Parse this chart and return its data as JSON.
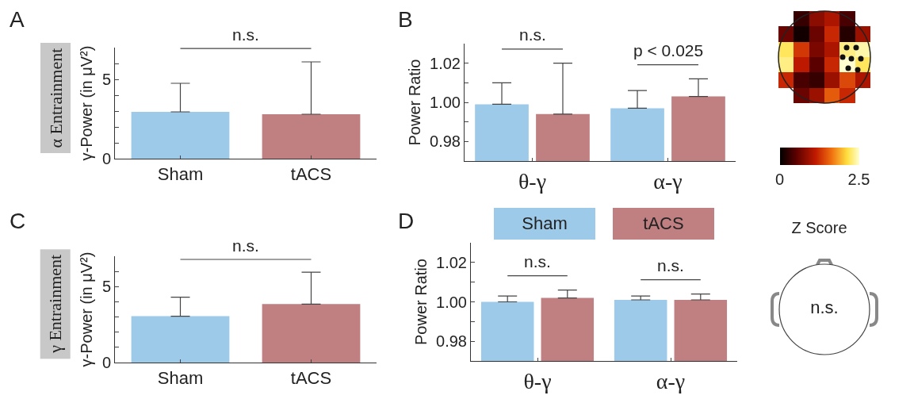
{
  "chart_data": [
    {
      "type": "bar",
      "title": "A",
      "subtitle": "α Entrainment",
      "ylabel": "γ-Power (in μV²)",
      "categories": [
        "Sham",
        "tACS"
      ],
      "values": [
        2.95,
        2.8
      ],
      "colors": [
        "#9ecae9",
        "#c07f80"
      ],
      "errors": [
        [
          2.95,
          4.75
        ],
        [
          2.8,
          6.1
        ]
      ],
      "ylim": [
        0,
        7
      ],
      "yticks": [
        0,
        {
          "value": 1,
          "label": null
        },
        {
          "value": 2,
          "label": null
        },
        {
          "value": 3,
          "label": null
        },
        {
          "value": 4,
          "label": null
        },
        5,
        {
          "value": 6,
          "label": null
        }
      ],
      "annotations": [
        "n.s."
      ]
    },
    {
      "type": "bar",
      "title": "B",
      "ylabel": "Power Ratio",
      "categories": [
        "θ-γ",
        "α-γ"
      ],
      "series": [
        {
          "color": "#9ecae9",
          "values": [
            0.999,
            0.997
          ],
          "errors": [
            [
              0.999,
              1.01
            ],
            [
              0.997,
              1.006
            ]
          ]
        },
        {
          "color": "#c07f80",
          "values": [
            0.994,
            1.003
          ],
          "errors": [
            [
              0.994,
              1.02
            ],
            [
              1.003,
              1.012
            ]
          ]
        }
      ],
      "ylim": [
        0.97,
        1.03
      ],
      "yticks": [
        0.98,
        {
          "value": 0.99,
          "label": null
        },
        {
          "value": 1,
          "label": "1.00"
        },
        {
          "value": 1.01,
          "label": null
        },
        1.02
      ],
      "annotations": [
        "n.s.",
        "p < 0.025"
      ]
    },
    {
      "type": "bar",
      "title": "C",
      "subtitle": "γ Entrainment",
      "ylabel": "γ-Power (in μV²)",
      "categories": [
        "Sham",
        "tACS"
      ],
      "values": [
        3.05,
        3.85
      ],
      "colors": [
        "#9ecae9",
        "#c07f80"
      ],
      "errors": [
        [
          3.05,
          4.3
        ],
        [
          3.85,
          5.95
        ]
      ],
      "ylim": [
        0,
        7
      ],
      "yticks": [
        0,
        {
          "value": 1,
          "label": null
        },
        {
          "value": 2,
          "label": null
        },
        {
          "value": 3,
          "label": null
        },
        {
          "value": 4,
          "label": null
        },
        5,
        {
          "value": 6,
          "label": null
        }
      ],
      "annotations": [
        "n.s."
      ]
    },
    {
      "type": "bar",
      "title": "D",
      "ylabel": "Power Ratio",
      "categories": [
        "θ-γ",
        "α-γ"
      ],
      "legend": "top",
      "series": [
        {
          "name": "Sham",
          "color": "#9ecae9",
          "values": [
            1.0,
            1.001
          ],
          "errors": [
            [
              1.0,
              1.003
            ],
            [
              1.001,
              1.003
            ]
          ]
        },
        {
          "name": "tACS",
          "color": "#c07f80",
          "values": [
            1.002,
            1.001
          ],
          "errors": [
            [
              1.002,
              1.006
            ],
            [
              1.001,
              1.004
            ]
          ]
        }
      ],
      "ylim": [
        0.97,
        1.03
      ],
      "yticks": [
        0.98,
        {
          "value": 0.99,
          "label": null
        },
        {
          "value": 1,
          "label": "1.00"
        },
        {
          "value": 1.01,
          "label": null
        },
        1.02
      ],
      "annotations": [
        "n.s.",
        "n.s."
      ]
    },
    {
      "type": "heatmap",
      "categories": [
        null,
        null,
        null,
        null,
        null,
        null
      ],
      "y_categories": [
        null,
        null,
        null,
        null,
        null,
        null
      ],
      "cells": [
        [
          null,
          0.3,
          0.8,
          1.0,
          0.4,
          null
        ],
        [
          0.6,
          0.1,
          0.6,
          1.2,
          0.2,
          0.9
        ],
        [
          2.2,
          1.3,
          0.7,
          1.0,
          2.3,
          2.4
        ],
        [
          2.3,
          1.1,
          0.5,
          1.2,
          2.5,
          2.2
        ],
        [
          1.2,
          0.4,
          0.3,
          0.9,
          1.4,
          1.0
        ],
        [
          null,
          0.6,
          0.9,
          1.5,
          1.2,
          null
        ]
      ],
      "clabel": "Z Score",
      "clim": [
        0,
        2.5
      ],
      "cticks": [
        0,
        2.5
      ]
    },
    {
      "type": "other",
      "annotations": [
        "n.s."
      ]
    }
  ]
}
